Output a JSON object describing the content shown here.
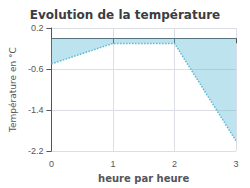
{
  "chart_data": {
    "type": "line",
    "title": "Evolution de la température",
    "xlabel": "heure par heure",
    "ylabel": "Température en °C",
    "x": [
      0,
      1,
      2,
      3
    ],
    "values": [
      -0.5,
      -0.1,
      -0.1,
      -2.0
    ],
    "color": "#5bb8d4",
    "line_style": "dotted",
    "xlim": [
      0,
      3
    ],
    "xticks": [
      0,
      1,
      2,
      3
    ],
    "ylim": [
      -2.2,
      0.2
    ],
    "yticks": [
      0.2,
      -0.6,
      -1.4,
      -2.2
    ],
    "grid": true
  }
}
